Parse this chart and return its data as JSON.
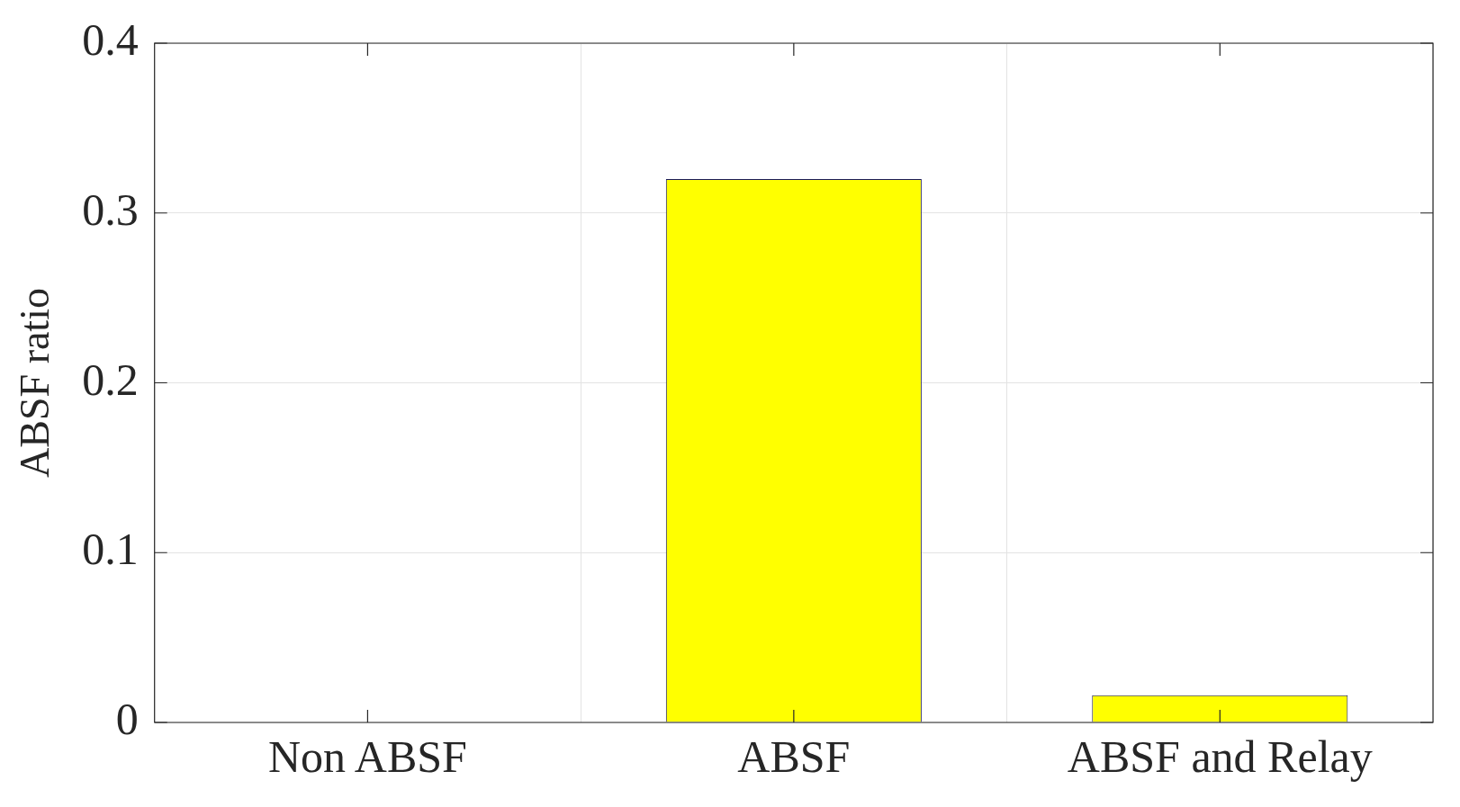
{
  "chart_data": {
    "type": "bar",
    "ylabel": "ABSF ratio",
    "categories": [
      "Non ABSF",
      "ABSF",
      "ABSF and Relay"
    ],
    "values": [
      0,
      0.32,
      0.016
    ],
    "color": "#ffff00",
    "ylim": [
      0,
      0.4
    ],
    "yticks": [
      0,
      0.1,
      0.2,
      0.3,
      0.4
    ],
    "grid": true,
    "legend": false
  }
}
